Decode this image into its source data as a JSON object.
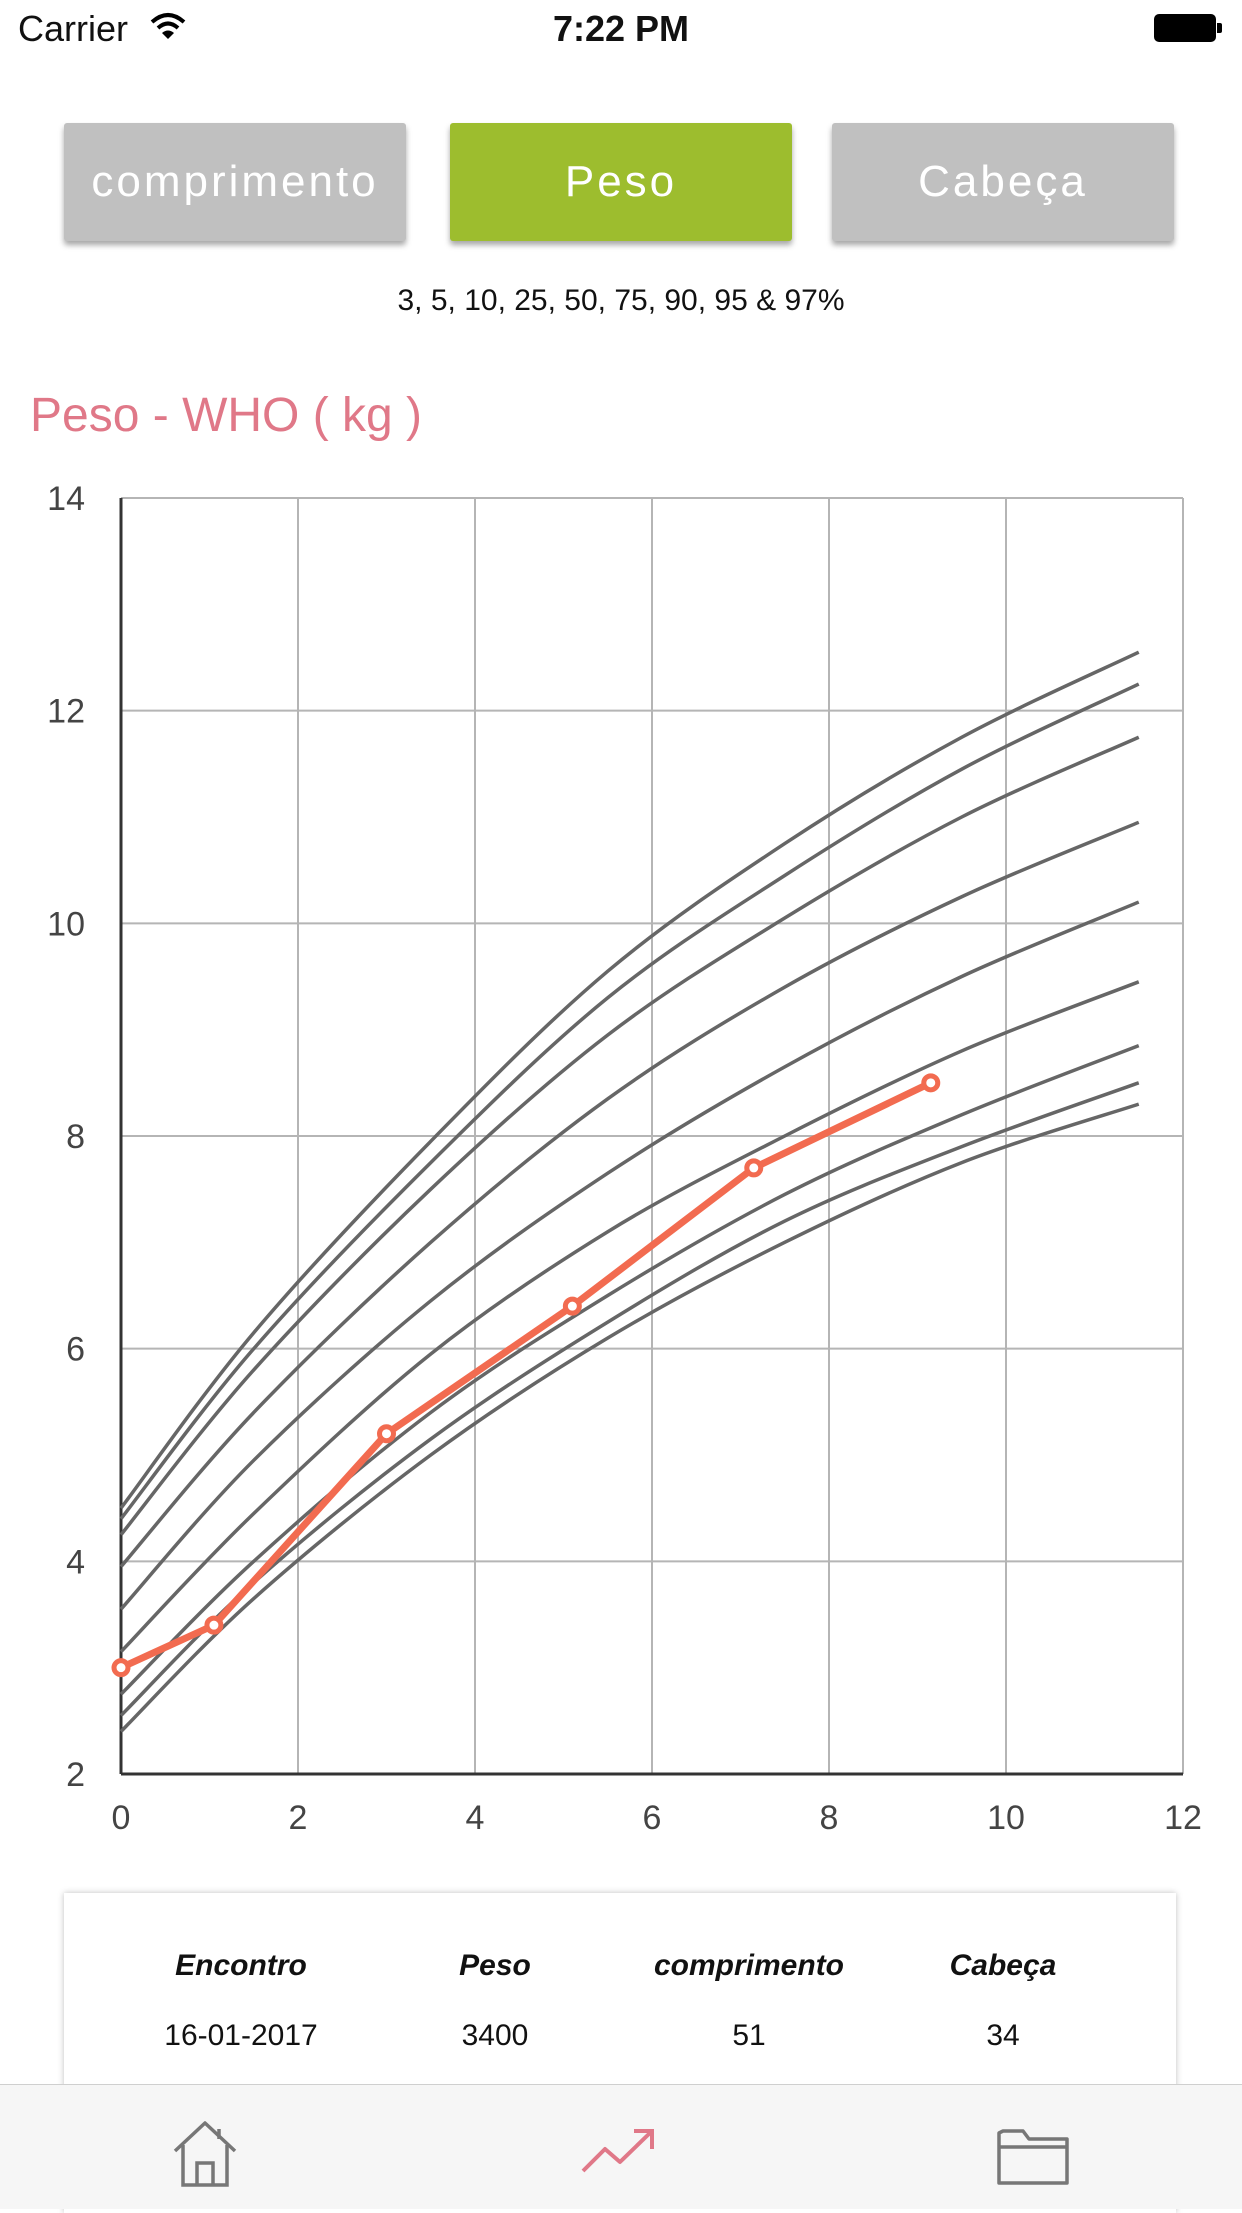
{
  "status_bar": {
    "carrier": "Carrier",
    "time": "7:22 PM"
  },
  "segments": [
    {
      "label": "comprimento",
      "selected": false
    },
    {
      "label": "Peso",
      "selected": true
    },
    {
      "label": "Cabeça",
      "selected": false
    }
  ],
  "colors": {
    "selected": "#9dbd2e",
    "unselected": "#c0c0c0",
    "title": "#e07888",
    "series": "#f26b50",
    "curves": "#666666"
  },
  "percentiles_text": "3, 5, 10, 25, 50, 75, 90, 95 & 97%",
  "chart_title": "Peso - WHO ( kg )",
  "chart_data": {
    "type": "line",
    "title": "Peso - WHO ( kg )",
    "xlabel": "",
    "ylabel": "",
    "xlim": [
      0,
      12
    ],
    "ylim": [
      2,
      14
    ],
    "x_ticks": [
      "0",
      "2",
      "4",
      "6",
      "8",
      "10",
      "12"
    ],
    "y_ticks": [
      "2",
      "4",
      "6",
      "8",
      "10",
      "12",
      "14"
    ],
    "grid": true,
    "percentile_x": [
      0,
      1.5,
      3.5,
      5.5,
      7.5,
      9.5,
      11.5
    ],
    "percentile_series": [
      {
        "values": [
          2.4,
          3.65,
          5.0,
          6.1,
          7.0,
          7.75,
          8.3
        ]
      },
      {
        "values": [
          2.55,
          3.8,
          5.15,
          6.25,
          7.2,
          7.9,
          8.5
        ]
      },
      {
        "values": [
          2.75,
          4.0,
          5.4,
          6.5,
          7.45,
          8.2,
          8.85
        ]
      },
      {
        "values": [
          3.15,
          4.45,
          5.95,
          7.1,
          8.0,
          8.8,
          9.45
        ]
      },
      {
        "values": [
          3.55,
          4.95,
          6.45,
          7.65,
          8.65,
          9.5,
          10.2
        ]
      },
      {
        "values": [
          3.95,
          5.4,
          7.0,
          8.35,
          9.4,
          10.25,
          10.95
        ]
      },
      {
        "values": [
          4.25,
          5.8,
          7.5,
          8.95,
          10.05,
          11.0,
          11.75
        ]
      },
      {
        "values": [
          4.4,
          6.0,
          7.75,
          9.3,
          10.45,
          11.45,
          12.25
        ]
      },
      {
        "values": [
          4.5,
          6.15,
          7.95,
          9.55,
          10.75,
          11.75,
          12.55
        ]
      }
    ],
    "series": [
      {
        "x": [
          0,
          1.05,
          3.0,
          5.1,
          7.15,
          9.15
        ],
        "values": [
          3.0,
          3.4,
          5.2,
          6.4,
          7.7,
          8.5
        ]
      }
    ]
  },
  "table": {
    "headers": [
      "Encontro",
      "Peso",
      "comprimento",
      "Cabeça"
    ],
    "rows": [
      [
        "16-01-2017",
        "3400",
        "51",
        "34"
      ]
    ]
  },
  "tabbar": [
    {
      "icon": "home-icon"
    },
    {
      "icon": "trending-up-icon",
      "active": true
    },
    {
      "icon": "folder-icon"
    }
  ]
}
